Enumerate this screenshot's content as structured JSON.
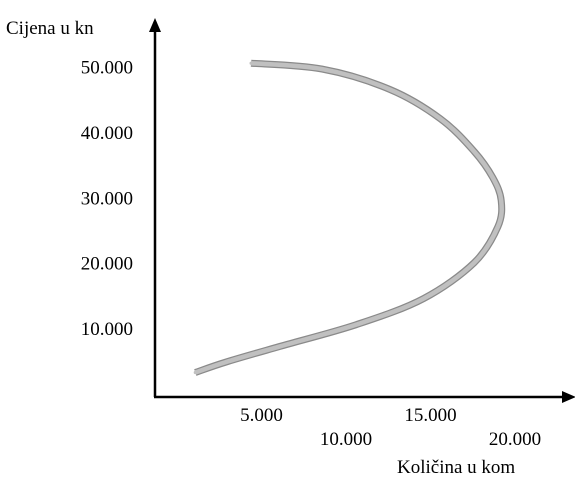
{
  "chart_data": {
    "type": "line",
    "title": "",
    "ylabel": "Cijena u kn",
    "xlabel": "Količina u kom",
    "y_ticks": [
      {
        "value": 50000,
        "label": "50.000"
      },
      {
        "value": 40000,
        "label": "40.000"
      },
      {
        "value": 30000,
        "label": "30.000"
      },
      {
        "value": 20000,
        "label": "20.000"
      },
      {
        "value": 10000,
        "label": "10.000"
      }
    ],
    "x_ticks": [
      {
        "value": 5000,
        "label": "5.000"
      },
      {
        "value": 10000,
        "label": "10.000"
      },
      {
        "value": 15000,
        "label": "15.000"
      },
      {
        "value": 20000,
        "label": "20.000"
      }
    ],
    "xlim": [
      0,
      29000
    ],
    "ylim": [
      -5000,
      60000
    ],
    "grid": false,
    "series": [
      {
        "x": [
          4800,
          9000,
          13000,
          16000,
          18000,
          19100,
          19600,
          19400,
          18000,
          15000,
          11000,
          6500,
          3300,
          1500
        ],
        "y": [
          50500,
          49600,
          46500,
          42000,
          37000,
          33000,
          29500,
          25500,
          20000,
          14500,
          10500,
          7200,
          4800,
          3200
        ]
      }
    ],
    "curve_color": "#c0c0c0",
    "curve_edge_color": "#8a8a8a",
    "axis_color": "#000000"
  }
}
